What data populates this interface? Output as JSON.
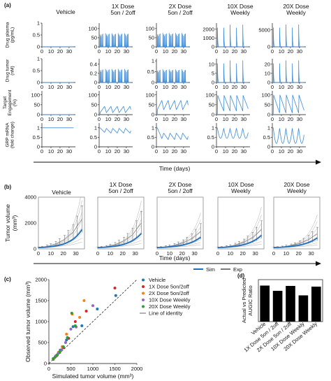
{
  "panels": {
    "a": {
      "letter": "(a)",
      "xlabel": "Time (days)"
    },
    "b": {
      "letter": "(b)",
      "xlabel": "Time (days)",
      "legend": {
        "sim": "Sim",
        "exp": "Exp"
      }
    },
    "c": {
      "letter": "(c)"
    },
    "d": {
      "letter": "(d)"
    }
  },
  "colors": {
    "sim": "#3a8ad8",
    "sim_b": "#1f6fc4",
    "exp": "#7a7a7a",
    "bar": "#000000"
  },
  "chart_data": [
    {
      "id": "a",
      "type": "line",
      "xlabel": "Time (days)",
      "x_ticks": [
        "0",
        "10",
        "20",
        "30"
      ],
      "xlim": [
        0,
        37
      ],
      "groups": [
        "Vehicle",
        "1X Dose\n5on / 2off",
        "2X Dose\n5on / 2off",
        "10X Dose\nWeekly",
        "20X Dose\nWeekly"
      ],
      "rows": [
        {
          "ylabel": "Drug plasma\n(pg/mL)",
          "cells": [
            {
              "yticks": [
                "0",
                "0.5",
                "1"
              ],
              "ylim": [
                0,
                1
              ],
              "shape": "flat",
              "level": 0
            },
            {
              "yticks": [
                "0",
                "50",
                "100"
              ],
              "ylim": [
                0,
                130
              ],
              "shape": "pulse_daily",
              "peak": 120
            },
            {
              "yticks": [
                "0",
                "50",
                "100"
              ],
              "ylim": [
                0,
                130
              ],
              "shape": "pulse_daily",
              "peak": 122
            },
            {
              "yticks": [
                "0",
                "1000",
                "2000"
              ],
              "ylim": [
                0,
                2700
              ],
              "shape": "pulse_weekly",
              "peak": 2500
            },
            {
              "yticks": [
                "0",
                "5000"
              ],
              "ylim": [
                0,
                7000
              ],
              "shape": "pulse_weekly",
              "peak": 6500
            }
          ]
        },
        {
          "ylabel": "Drug tumor\n(nM)",
          "cells": [
            {
              "yticks": [
                "0",
                "0.5",
                "1"
              ],
              "ylim": [
                0,
                1
              ],
              "shape": "flat",
              "level": 0
            },
            {
              "yticks": [
                "0",
                "0.2",
                "0.4"
              ],
              "ylim": [
                0,
                0.52
              ],
              "shape": "pulse_daily",
              "peak": 0.48
            },
            {
              "yticks": [
                "0",
                "0.5",
                "1"
              ],
              "ylim": [
                0,
                1.1
              ],
              "shape": "pulse_daily",
              "peak": 0.98
            },
            {
              "yticks": [
                "0",
                "5",
                "10"
              ],
              "ylim": [
                0,
                13
              ],
              "shape": "pulse_weekly",
              "peak": 12
            },
            {
              "yticks": [
                "0",
                "10",
                "20"
              ],
              "ylim": [
                0,
                26
              ],
              "shape": "pulse_weekly",
              "peak": 24
            }
          ]
        },
        {
          "ylabel": "Target\nEngagement\n(%)",
          "cells": [
            {
              "yticks": [
                "0",
                "50",
                "100"
              ],
              "ylim": [
                0,
                120
              ],
              "shape": "flat",
              "level": 0
            },
            {
              "yticks": [
                "0",
                "50",
                "100"
              ],
              "ylim": [
                0,
                120
              ],
              "shape": "te_daily",
              "low": 10,
              "high": 42
            },
            {
              "yticks": [
                "0",
                "50",
                "100"
              ],
              "ylim": [
                0,
                120
              ],
              "shape": "te_daily",
              "low": 25,
              "high": 72
            },
            {
              "yticks": [
                "0",
                "50",
                "100"
              ],
              "ylim": [
                0,
                120
              ],
              "shape": "te_weekly",
              "low": 18,
              "high": 97
            },
            {
              "yticks": [
                "0",
                "50",
                "100"
              ],
              "ylim": [
                0,
                120
              ],
              "shape": "te_weekly",
              "low": 8,
              "high": 99
            }
          ]
        },
        {
          "ylabel": "GRP mRNA\n(fold change)",
          "cells": [
            {
              "yticks": [
                "0",
                "0.5",
                "1"
              ],
              "ylim": [
                0,
                1.25
              ],
              "shape": "flat",
              "level": 1
            },
            {
              "yticks": [
                "0",
                "0.5",
                "1"
              ],
              "ylim": [
                0,
                1.25
              ],
              "shape": "mrna_daily",
              "low": 0.72,
              "high": 0.97
            },
            {
              "yticks": [
                "0",
                "0.5",
                "1"
              ],
              "ylim": [
                0,
                1.25
              ],
              "shape": "mrna_daily",
              "low": 0.38,
              "high": 0.72
            },
            {
              "yticks": [
                "0",
                "0.5",
                "1"
              ],
              "ylim": [
                0,
                1.25
              ],
              "shape": "mrna_weekly",
              "low": 0.45,
              "high": 0.98
            },
            {
              "yticks": [
                "0",
                "0.5",
                "1"
              ],
              "ylim": [
                0,
                1.25
              ],
              "shape": "mrna_weekly",
              "low": 0.18,
              "high": 0.98
            }
          ]
        }
      ]
    },
    {
      "id": "b",
      "type": "line",
      "ylabel": "Tumor volume\n(mm³)",
      "xlabel": "Time (days)",
      "groups": [
        "Vehicle",
        "1X Dose\n5on / 2off",
        "2X Dose\n5on / 2off",
        "10X Dose\nWeekly",
        "20X Dose\nWeekly"
      ],
      "x_ticks": [
        "0",
        "10",
        "20",
        "30"
      ],
      "y_ticks": [
        "0",
        "2000",
        "4000"
      ],
      "xlim": [
        0,
        37
      ],
      "ylim": [
        0,
        4000
      ],
      "series": [
        {
          "name": "Sim",
          "sim_end_values": [
            1500,
            1200,
            900,
            1050,
            850
          ],
          "exp_x": [
            0,
            3,
            7,
            10,
            14,
            17,
            21,
            24,
            28,
            31,
            35
          ],
          "exp_mean": [
            [
              100,
              140,
              200,
              280,
              400,
              540,
              720,
              980,
              1300,
              1750,
              2300
            ],
            [
              100,
              130,
              180,
              250,
              340,
              460,
              620,
              820,
              1100,
              1500,
              2000
            ],
            [
              100,
              120,
              160,
              210,
              280,
              370,
              480,
              620,
              800,
              1040,
              1350
            ],
            [
              100,
              125,
              170,
              220,
              300,
              400,
              520,
              680,
              880,
              1150,
              1500
            ],
            [
              100,
              120,
              150,
              200,
              260,
              330,
              430,
              560,
              720,
              920,
              1150
            ]
          ]
        },
        {
          "name": "Exp"
        }
      ]
    },
    {
      "id": "c",
      "type": "scatter",
      "xlabel": "Simulated tumor volume (mm³)",
      "ylabel": "Observed tumor volume (mm³)",
      "x_ticks": [
        "0",
        "500",
        "1000",
        "1500",
        "2000"
      ],
      "y_ticks": [
        "0",
        "500",
        "1000",
        "1500",
        "2000"
      ],
      "xlim": [
        0,
        2000
      ],
      "ylim": [
        0,
        2000
      ],
      "series": [
        {
          "name": "Vehicle",
          "color": "#1f77b4",
          "points": [
            [
              100,
              110
            ],
            [
              180,
              200
            ],
            [
              260,
              320
            ],
            [
              400,
              560
            ],
            [
              550,
              880
            ],
            [
              750,
              900
            ],
            [
              1100,
              1300
            ],
            [
              1520,
              1620
            ]
          ]
        },
        {
          "name": "1X Dose 5on/2off",
          "color": "#d62728",
          "points": [
            [
              100,
              100
            ],
            [
              170,
              180
            ],
            [
              240,
              260
            ],
            [
              330,
              380
            ],
            [
              450,
              600
            ],
            [
              600,
              1000
            ],
            [
              850,
              1250
            ],
            [
              1500,
              1800
            ]
          ]
        },
        {
          "name": "2X Dose 5on/2off",
          "color": "#ff7f0e",
          "points": [
            [
              110,
              120
            ],
            [
              160,
              190
            ],
            [
              220,
              270
            ],
            [
              300,
              400
            ],
            [
              400,
              700
            ],
            [
              530,
              1180
            ],
            [
              700,
              1100
            ],
            [
              800,
              1500
            ]
          ]
        },
        {
          "name": "10X Dose Weekly",
          "color": "#9467bd",
          "points": [
            [
              100,
              120
            ],
            [
              150,
              170
            ],
            [
              210,
              240
            ],
            [
              290,
              330
            ],
            [
              380,
              500
            ],
            [
              500,
              820
            ],
            [
              620,
              870
            ],
            [
              1000,
              1380
            ]
          ]
        },
        {
          "name": "20X Dose Weekly",
          "color": "#2ca02c",
          "points": [
            [
              100,
              110
            ],
            [
              140,
              150
            ],
            [
              190,
              200
            ],
            [
              250,
              280
            ],
            [
              330,
              400
            ],
            [
              420,
              620
            ],
            [
              520,
              1200
            ],
            [
              600,
              900
            ]
          ]
        }
      ],
      "identity": {
        "name": "Line of identity"
      }
    },
    {
      "id": "d",
      "type": "bar",
      "ylabel": "Actual vs Predicted\nAUGIC Ratio",
      "categories": [
        "Vehicle",
        "1X Dose 5on / 2off",
        "2X Dose 5on / 2off",
        "10X Dose Weekly",
        "20X Dose Weekly"
      ],
      "values": [
        1.03,
        0.88,
        1.02,
        0.75,
        1.0
      ],
      "ylim": [
        0,
        1.2
      ]
    }
  ]
}
